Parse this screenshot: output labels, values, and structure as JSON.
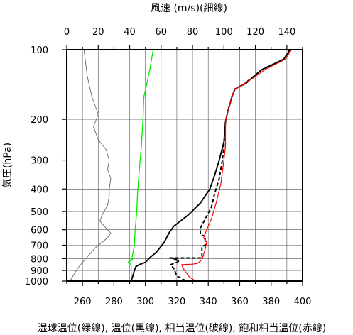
{
  "chart_data": {
    "type": "line",
    "title_top": "風速 (m/s)(細線)",
    "xlabel": "湿球温位(緑線), 温位(黒線), 相当温位(破線), 飽和相当温位(赤線)",
    "ylabel": "気圧(hPa)",
    "x_bottom": {
      "label_unit": "K",
      "lim": [
        250,
        400
      ],
      "ticks": [
        260,
        280,
        300,
        320,
        340,
        360,
        380,
        400
      ]
    },
    "x_top": {
      "lim": [
        0,
        150
      ],
      "ticks": [
        0,
        20,
        40,
        60,
        80,
        100,
        120,
        140
      ]
    },
    "y": {
      "scale": "log",
      "lim": [
        1000,
        100
      ],
      "ticks": [
        100,
        200,
        300,
        400,
        500,
        600,
        700,
        800,
        900,
        1000
      ]
    },
    "grid": true,
    "series": [
      {
        "key": "wind",
        "color": "#666666",
        "axis": "top",
        "width": 0.9,
        "points": [
          [
            11,
            100
          ],
          [
            13,
            130
          ],
          [
            16,
            160
          ],
          [
            20,
            190
          ],
          [
            17,
            215
          ],
          [
            20,
            245
          ],
          [
            25,
            270
          ],
          [
            27,
            300
          ],
          [
            26,
            330
          ],
          [
            28,
            360
          ],
          [
            27,
            400
          ],
          [
            27,
            430
          ],
          [
            26,
            470
          ],
          [
            23,
            510
          ],
          [
            21,
            550
          ],
          [
            25,
            590
          ],
          [
            28,
            620
          ],
          [
            26,
            650
          ],
          [
            18,
            720
          ],
          [
            12,
            800
          ],
          [
            7,
            880
          ],
          [
            2,
            1000
          ]
        ]
      },
      {
        "key": "theta_w",
        "color": "#00ee00",
        "axis": "bottom",
        "width": 1.3,
        "points": [
          [
            305,
            100
          ],
          [
            303,
            120
          ],
          [
            301,
            140
          ],
          [
            299,
            160
          ],
          [
            298.5,
            200
          ],
          [
            297.5,
            260
          ],
          [
            296,
            340
          ],
          [
            295,
            420
          ],
          [
            294.5,
            500
          ],
          [
            293.5,
            600
          ],
          [
            293,
            700
          ],
          [
            292,
            760
          ],
          [
            291.5,
            795
          ],
          [
            290,
            800
          ],
          [
            292,
            808
          ],
          [
            289,
            828
          ],
          [
            291,
            850
          ],
          [
            291,
            880
          ],
          [
            291,
            1000
          ]
        ]
      },
      {
        "key": "theta",
        "color": "#000000",
        "axis": "bottom",
        "width": 1.9,
        "points": [
          [
            392,
            100
          ],
          [
            388,
            110
          ],
          [
            374,
            122
          ],
          [
            368,
            132
          ],
          [
            364,
            140
          ],
          [
            362,
            142
          ],
          [
            361,
            143
          ],
          [
            357,
            148
          ],
          [
            355,
            160
          ],
          [
            354,
            170
          ],
          [
            352.5,
            183
          ],
          [
            351,
            205
          ],
          [
            350,
            250
          ],
          [
            347,
            300
          ],
          [
            344,
            350
          ],
          [
            341,
            400
          ],
          [
            335,
            460
          ],
          [
            327,
            520
          ],
          [
            318,
            580
          ],
          [
            315,
            620
          ],
          [
            312,
            680
          ],
          [
            307,
            750
          ],
          [
            303,
            790
          ],
          [
            300,
            830
          ],
          [
            296,
            850
          ],
          [
            294,
            865
          ],
          [
            293,
            900
          ],
          [
            292,
            950
          ],
          [
            291,
            1000
          ]
        ]
      },
      {
        "key": "theta_e",
        "color": "#000000",
        "axis": "bottom",
        "width": 1.9,
        "dash": "5,3",
        "points": [
          [
            392,
            100
          ],
          [
            388,
            110
          ],
          [
            374,
            122
          ],
          [
            368,
            132
          ],
          [
            362,
            142
          ],
          [
            357,
            148
          ],
          [
            355,
            160
          ],
          [
            354,
            170
          ],
          [
            352.5,
            183
          ],
          [
            351,
            205
          ],
          [
            350,
            260
          ],
          [
            349,
            300
          ],
          [
            347,
            360
          ],
          [
            344,
            420
          ],
          [
            342,
            480
          ],
          [
            338,
            540
          ],
          [
            335,
            590
          ],
          [
            335,
            630
          ],
          [
            338,
            640
          ],
          [
            338,
            700
          ],
          [
            336,
            708
          ],
          [
            336,
            770
          ],
          [
            336,
            795
          ],
          [
            315,
            795
          ],
          [
            320,
            800
          ],
          [
            318,
            810
          ],
          [
            322,
            815
          ],
          [
            320,
            830
          ],
          [
            316,
            850
          ],
          [
            318,
            880
          ],
          [
            320,
            950
          ],
          [
            326,
            1000
          ]
        ]
      },
      {
        "key": "theta_es",
        "color": "#ff0000",
        "axis": "bottom",
        "width": 1.2,
        "points": [
          [
            393,
            100
          ],
          [
            389,
            110
          ],
          [
            376,
            122
          ],
          [
            369,
            132
          ],
          [
            363,
            140
          ],
          [
            362,
            142
          ],
          [
            361,
            143
          ],
          [
            357,
            148
          ],
          [
            355,
            160
          ],
          [
            354,
            170
          ],
          [
            352.5,
            183
          ],
          [
            351,
            205
          ],
          [
            351,
            260
          ],
          [
            350,
            300
          ],
          [
            348,
            380
          ],
          [
            345,
            460
          ],
          [
            342,
            540
          ],
          [
            339,
            600
          ],
          [
            337,
            650
          ],
          [
            339,
            680
          ],
          [
            338,
            730
          ],
          [
            337,
            770
          ],
          [
            336,
            810
          ],
          [
            333,
            840
          ],
          [
            330,
            845
          ],
          [
            324,
            848
          ],
          [
            323,
            850
          ],
          [
            324,
            880
          ],
          [
            326,
            920
          ],
          [
            328,
            960
          ],
          [
            332,
            1000
          ]
        ]
      }
    ]
  }
}
